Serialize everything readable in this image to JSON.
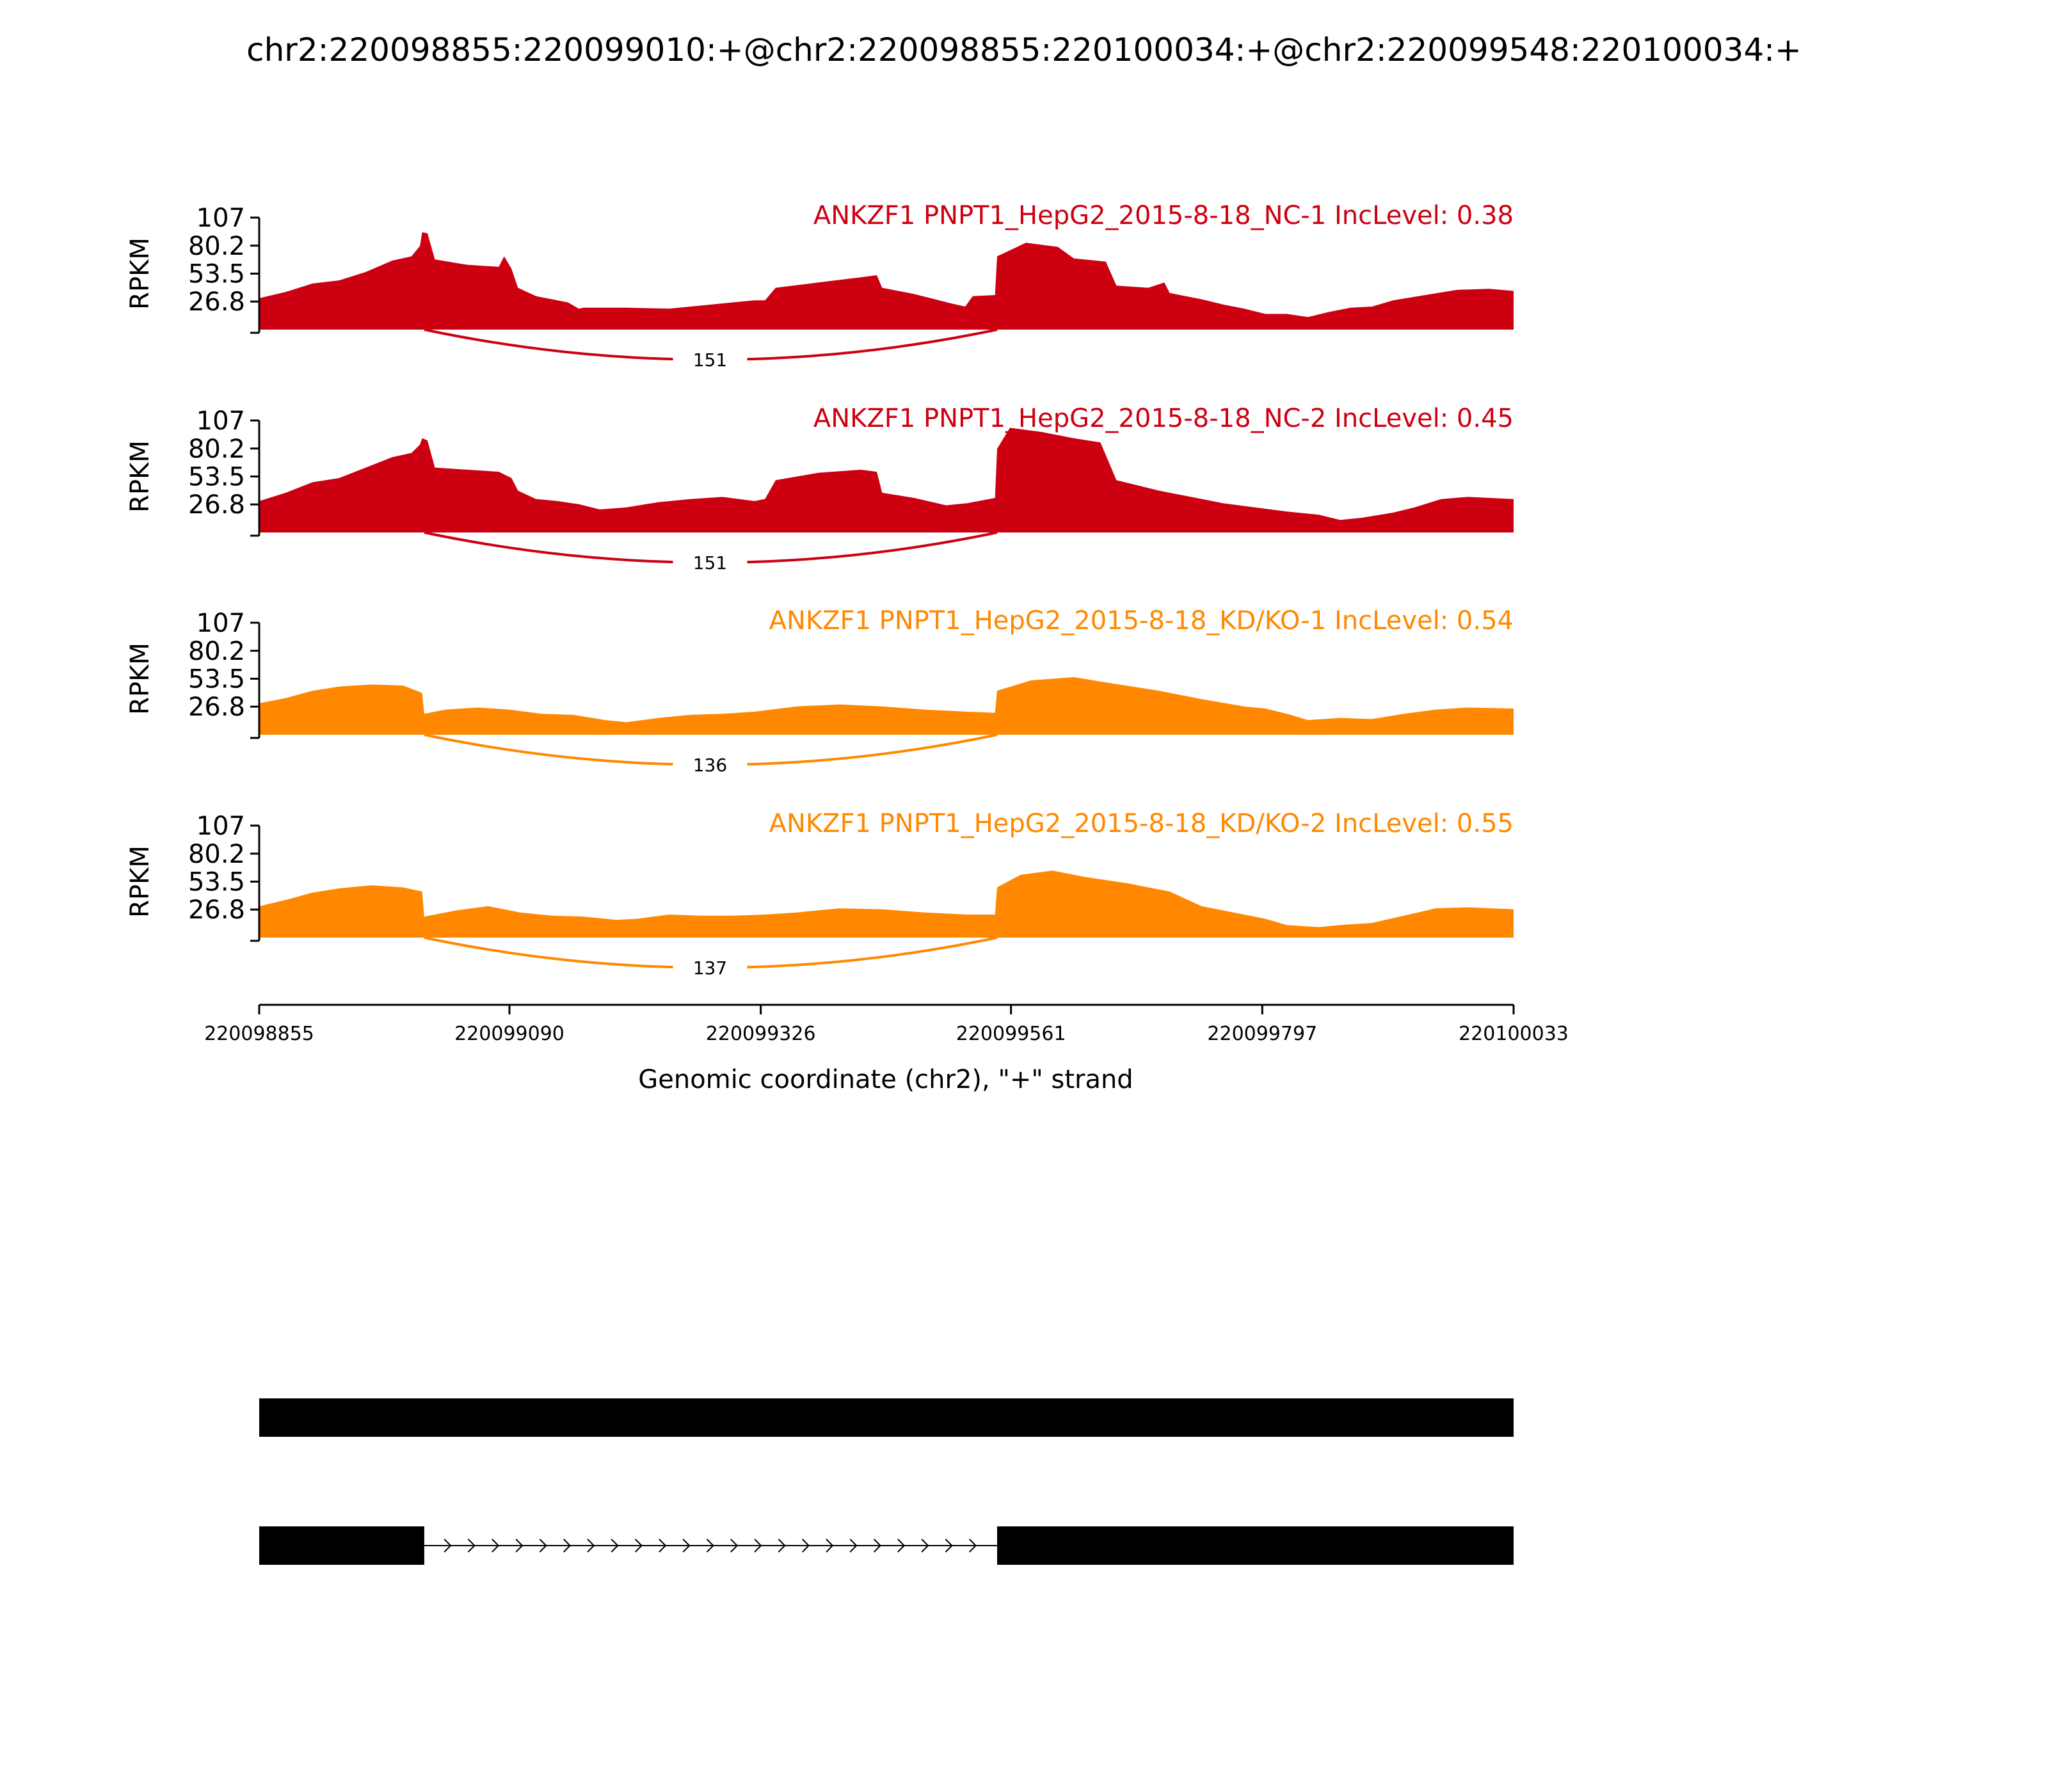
{
  "chart_data": {
    "type": "area",
    "title": "chr2:220098855:220099010:+@chr2:220098855:220100034:+@chr2:220099548:220100034:+",
    "xlabel": "Genomic coordinate (chr2), \"+\" strand",
    "ylabel": "RPKM",
    "xlim": [
      220098855,
      220100033
    ],
    "ylim": [
      0,
      107
    ],
    "x_ticks": [
      "220098855",
      "220099090",
      "220099326",
      "220099561",
      "220099797",
      "220100033"
    ],
    "y_ticks": [
      "26.8",
      "53.5",
      "80.2",
      "107"
    ],
    "colors": {
      "nc": "#cc0011",
      "kd": "#ff8800"
    },
    "junction": {
      "start": 220099010,
      "end": 220099548
    },
    "tracks": [
      {
        "name": "ANKZF1 PNPT1_HepG2_2015-8-18_NC-1 IncLevel: 0.38",
        "group": "nc",
        "junction_count": "151",
        "profile": [
          [
            220098855,
            30
          ],
          [
            220098880,
            36
          ],
          [
            220098905,
            44
          ],
          [
            220098930,
            47
          ],
          [
            220098955,
            55
          ],
          [
            220098980,
            66
          ],
          [
            220098998,
            70
          ],
          [
            220099006,
            80
          ],
          [
            220099008,
            93
          ],
          [
            220099013,
            92
          ],
          [
            220099020,
            67
          ],
          [
            220099050,
            62
          ],
          [
            220099080,
            60
          ],
          [
            220099085,
            70
          ],
          [
            220099092,
            58
          ],
          [
            220099098,
            40
          ],
          [
            220099115,
            32
          ],
          [
            220099130,
            29
          ],
          [
            220099145,
            26
          ],
          [
            220099155,
            20
          ],
          [
            220099160,
            21
          ],
          [
            220099200,
            21
          ],
          [
            220099240,
            20
          ],
          [
            220099280,
            24
          ],
          [
            220099320,
            28
          ],
          [
            220099330,
            28
          ],
          [
            220099340,
            40
          ],
          [
            220099380,
            45
          ],
          [
            220099420,
            50
          ],
          [
            220099435,
            52
          ],
          [
            220099440,
            40
          ],
          [
            220099470,
            34
          ],
          [
            220099505,
            25
          ],
          [
            220099518,
            22
          ],
          [
            220099525,
            32
          ],
          [
            220099546,
            33
          ],
          [
            220099548,
            70
          ],
          [
            220099575,
            83
          ],
          [
            220099605,
            79
          ],
          [
            220099620,
            68
          ],
          [
            220099650,
            65
          ],
          [
            220099660,
            42
          ],
          [
            220099690,
            40
          ],
          [
            220099705,
            45
          ],
          [
            220099710,
            35
          ],
          [
            220099740,
            29
          ],
          [
            220099760,
            24
          ],
          [
            220099780,
            20
          ],
          [
            220099800,
            15
          ],
          [
            220099820,
            15
          ],
          [
            220099840,
            12
          ],
          [
            220099860,
            17
          ],
          [
            220099880,
            21
          ],
          [
            220099900,
            22
          ],
          [
            220099920,
            28
          ],
          [
            220099950,
            33
          ],
          [
            220099980,
            38
          ],
          [
            220100010,
            39
          ],
          [
            220100033,
            37
          ]
        ]
      },
      {
        "name": "ANKZF1 PNPT1_HepG2_2015-8-18_NC-2 IncLevel: 0.45",
        "group": "nc",
        "junction_count": "151",
        "profile": [
          [
            220098855,
            30
          ],
          [
            220098880,
            38
          ],
          [
            220098905,
            48
          ],
          [
            220098930,
            52
          ],
          [
            220098955,
            62
          ],
          [
            220098980,
            72
          ],
          [
            220098998,
            76
          ],
          [
            220099006,
            84
          ],
          [
            220099008,
            90
          ],
          [
            220099013,
            88
          ],
          [
            220099020,
            62
          ],
          [
            220099050,
            60
          ],
          [
            220099080,
            58
          ],
          [
            220099092,
            52
          ],
          [
            220099098,
            40
          ],
          [
            220099115,
            32
          ],
          [
            220099135,
            30
          ],
          [
            220099155,
            27
          ],
          [
            220099175,
            22
          ],
          [
            220099200,
            24
          ],
          [
            220099230,
            29
          ],
          [
            220099260,
            32
          ],
          [
            220099290,
            34
          ],
          [
            220099320,
            30
          ],
          [
            220099330,
            32
          ],
          [
            220099340,
            50
          ],
          [
            220099380,
            57
          ],
          [
            220099420,
            60
          ],
          [
            220099435,
            58
          ],
          [
            220099440,
            38
          ],
          [
            220099470,
            33
          ],
          [
            220099500,
            26
          ],
          [
            220099520,
            28
          ],
          [
            220099546,
            33
          ],
          [
            220099548,
            80
          ],
          [
            220099560,
            100
          ],
          [
            220099590,
            96
          ],
          [
            220099620,
            90
          ],
          [
            220099645,
            86
          ],
          [
            220099660,
            50
          ],
          [
            220099700,
            40
          ],
          [
            220099730,
            34
          ],
          [
            220099760,
            28
          ],
          [
            220099790,
            24
          ],
          [
            220099820,
            20
          ],
          [
            220099850,
            17
          ],
          [
            220099870,
            12
          ],
          [
            220099890,
            14
          ],
          [
            220099920,
            19
          ],
          [
            220099940,
            24
          ],
          [
            220099965,
            32
          ],
          [
            220099990,
            34
          ],
          [
            220100033,
            32
          ]
        ]
      },
      {
        "name": "ANKZF1 PNPT1_HepG2_2015-8-18_KD/KO-1 IncLevel: 0.54",
        "group": "kd",
        "junction_count": "136",
        "profile": [
          [
            220098855,
            30
          ],
          [
            220098880,
            35
          ],
          [
            220098905,
            42
          ],
          [
            220098930,
            46
          ],
          [
            220098960,
            48
          ],
          [
            220098990,
            47
          ],
          [
            220099008,
            40
          ],
          [
            220099010,
            20
          ],
          [
            220099030,
            24
          ],
          [
            220099060,
            26
          ],
          [
            220099090,
            24
          ],
          [
            220099120,
            20
          ],
          [
            220099150,
            19
          ],
          [
            220099180,
            14
          ],
          [
            220099200,
            12
          ],
          [
            220099230,
            16
          ],
          [
            220099260,
            19
          ],
          [
            220099290,
            20
          ],
          [
            220099320,
            22
          ],
          [
            220099360,
            27
          ],
          [
            220099400,
            29
          ],
          [
            220099440,
            27
          ],
          [
            220099480,
            24
          ],
          [
            220099520,
            22
          ],
          [
            220099546,
            21
          ],
          [
            220099548,
            42
          ],
          [
            220099580,
            52
          ],
          [
            220099620,
            55
          ],
          [
            220099650,
            50
          ],
          [
            220099700,
            42
          ],
          [
            220099740,
            34
          ],
          [
            220099780,
            27
          ],
          [
            220099800,
            25
          ],
          [
            220099820,
            20
          ],
          [
            220099840,
            14
          ],
          [
            220099870,
            16
          ],
          [
            220099900,
            15
          ],
          [
            220099930,
            20
          ],
          [
            220099960,
            24
          ],
          [
            220099990,
            26
          ],
          [
            220100033,
            25
          ]
        ]
      },
      {
        "name": "ANKZF1 PNPT1_HepG2_2015-8-18_KD/KO-2 IncLevel: 0.55",
        "group": "kd",
        "junction_count": "137",
        "profile": [
          [
            220098855,
            30
          ],
          [
            220098880,
            36
          ],
          [
            220098905,
            43
          ],
          [
            220098930,
            47
          ],
          [
            220098960,
            50
          ],
          [
            220098990,
            48
          ],
          [
            220099008,
            44
          ],
          [
            220099010,
            20
          ],
          [
            220099040,
            26
          ],
          [
            220099070,
            30
          ],
          [
            220099100,
            24
          ],
          [
            220099130,
            21
          ],
          [
            220099160,
            20
          ],
          [
            220099190,
            17
          ],
          [
            220099210,
            18
          ],
          [
            220099240,
            22
          ],
          [
            220099270,
            21
          ],
          [
            220099300,
            21
          ],
          [
            220099330,
            22
          ],
          [
            220099360,
            24
          ],
          [
            220099400,
            28
          ],
          [
            220099440,
            27
          ],
          [
            220099480,
            24
          ],
          [
            220099520,
            22
          ],
          [
            220099546,
            22
          ],
          [
            220099548,
            48
          ],
          [
            220099570,
            60
          ],
          [
            220099600,
            64
          ],
          [
            220099630,
            58
          ],
          [
            220099670,
            52
          ],
          [
            220099710,
            44
          ],
          [
            220099740,
            30
          ],
          [
            220099770,
            24
          ],
          [
            220099800,
            18
          ],
          [
            220099820,
            12
          ],
          [
            220099850,
            10
          ],
          [
            220099870,
            12
          ],
          [
            220099900,
            14
          ],
          [
            220099930,
            21
          ],
          [
            220099960,
            28
          ],
          [
            220099990,
            29
          ],
          [
            220100033,
            27
          ]
        ]
      }
    ],
    "gene_models": [
      {
        "exons": [
          [
            220098855,
            220100033
          ]
        ]
      },
      {
        "exons": [
          [
            220098855,
            220099010
          ],
          [
            220099548,
            220100033
          ]
        ],
        "intron_strand": "+"
      }
    ]
  }
}
